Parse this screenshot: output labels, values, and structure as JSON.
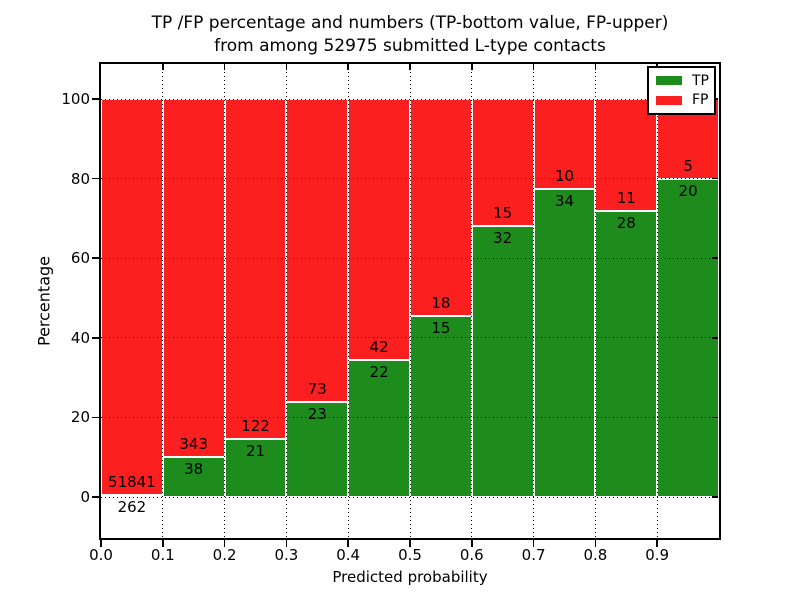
{
  "title": {
    "line1": "TP /FP percentage and numbers (TP-bottom value, FP-upper)",
    "line2": "from among 52975 submitted L-type contacts"
  },
  "axes": {
    "xlabel": "Predicted probability",
    "ylabel": "Percentage",
    "x_tick_labels": [
      "0.0",
      "0.1",
      "0.2",
      "0.3",
      "0.4",
      "0.5",
      "0.6",
      "0.7",
      "0.8",
      "0.9"
    ],
    "y_tick_labels": [
      "0",
      "20",
      "40",
      "60",
      "80",
      "100"
    ]
  },
  "legend": {
    "entries": [
      {
        "label": "TP",
        "color": "#1d8c1d"
      },
      {
        "label": "FP",
        "color": "#fb1f1f"
      }
    ]
  },
  "colors": {
    "tp_bar": "#1d8c1d",
    "fp_bar": "#fb1f1f",
    "bar_edge": "#ffffff",
    "grid": "#000000",
    "frame": "#000000",
    "background": "#ffffff"
  },
  "chart_data": {
    "type": "bar",
    "stacked": true,
    "unit": "percent",
    "title": "TP /FP percentage and numbers (TP-bottom value, FP-upper) from among 52975 submitted L-type contacts",
    "xlabel": "Predicted probability",
    "ylabel": "Percentage",
    "total_contacts": 52975,
    "categories": [
      "0.0-0.1",
      "0.1-0.2",
      "0.2-0.3",
      "0.3-0.4",
      "0.4-0.5",
      "0.5-0.6",
      "0.6-0.7",
      "0.7-0.8",
      "0.8-0.9",
      "0.9-1.0"
    ],
    "series": [
      {
        "name": "TP",
        "color": "#1d8c1d",
        "counts": [
          262,
          38,
          21,
          23,
          22,
          15,
          32,
          34,
          28,
          20
        ],
        "pct": [
          0.5,
          9.97,
          14.69,
          23.96,
          34.38,
          45.45,
          68.09,
          77.27,
          71.79,
          80.0
        ]
      },
      {
        "name": "FP",
        "color": "#fb1f1f",
        "counts": [
          51841,
          343,
          122,
          73,
          42,
          18,
          15,
          10,
          11,
          5
        ],
        "pct": [
          99.5,
          90.03,
          85.31,
          76.04,
          65.62,
          54.55,
          31.91,
          22.73,
          28.21,
          20.0
        ]
      }
    ],
    "x_ticks": [
      0.0,
      0.1,
      0.2,
      0.3,
      0.4,
      0.5,
      0.6,
      0.7,
      0.8,
      0.9
    ],
    "y_ticks": [
      0,
      20,
      40,
      60,
      80,
      100
    ],
    "xlim": [
      0.0,
      1.0
    ],
    "ylim": [
      -10.8,
      109.3
    ],
    "grid": {
      "visible": true,
      "linestyle": "dotted"
    },
    "legend_position": "upper right",
    "annotation_note": "FP count shown above stack boundary, TP count below"
  }
}
